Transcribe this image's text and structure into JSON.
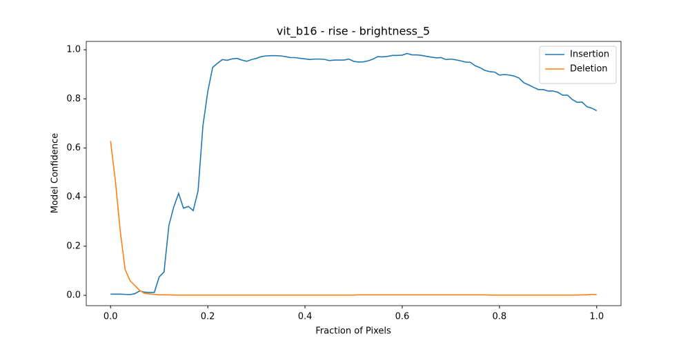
{
  "chart_data": {
    "type": "line",
    "title": "vit_b16 - rise - brightness_5",
    "x_label": "Fraction of Pixels",
    "y_label": "Model Confidence",
    "x": [
      0,
      0.01,
      0.02,
      0.03,
      0.04,
      0.05,
      0.06,
      0.07,
      0.08,
      0.09,
      0.1,
      0.11,
      0.12,
      0.13,
      0.14,
      0.15,
      0.16,
      0.17,
      0.18,
      0.19,
      0.2,
      0.21,
      0.22,
      0.23,
      0.24,
      0.25,
      0.26,
      0.27,
      0.28,
      0.29,
      0.3,
      0.31,
      0.32,
      0.33,
      0.34,
      0.35,
      0.36,
      0.37,
      0.38,
      0.39,
      0.4,
      0.41,
      0.42,
      0.43,
      0.44,
      0.45,
      0.46,
      0.47,
      0.48,
      0.49,
      0.5,
      0.51,
      0.52,
      0.53,
      0.54,
      0.55,
      0.56,
      0.57,
      0.58,
      0.59,
      0.6,
      0.61,
      0.62,
      0.63,
      0.64,
      0.65,
      0.66,
      0.67,
      0.68,
      0.69,
      0.7,
      0.71,
      0.72,
      0.73,
      0.74,
      0.75,
      0.76,
      0.77,
      0.78,
      0.79,
      0.8,
      0.81,
      0.82,
      0.83,
      0.84,
      0.85,
      0.86,
      0.87,
      0.88,
      0.89,
      0.9,
      0.91,
      0.92,
      0.93,
      0.94,
      0.95,
      0.96,
      0.97,
      0.98,
      0.99,
      1
    ],
    "series": [
      {
        "name": "Insertion",
        "color": "#1f77b4",
        "values": [
          0.005,
          0.005,
          0.005,
          0.004,
          0.003,
          0.007,
          0.018,
          0.013,
          0.012,
          0.012,
          0.075,
          0.095,
          0.285,
          0.36,
          0.415,
          0.355,
          0.362,
          0.345,
          0.425,
          0.69,
          0.83,
          0.928,
          0.945,
          0.96,
          0.957,
          0.963,
          0.965,
          0.958,
          0.953,
          0.96,
          0.965,
          0.972,
          0.975,
          0.976,
          0.976,
          0.975,
          0.972,
          0.968,
          0.968,
          0.965,
          0.963,
          0.96,
          0.962,
          0.962,
          0.961,
          0.956,
          0.958,
          0.958,
          0.958,
          0.962,
          0.953,
          0.95,
          0.951,
          0.955,
          0.962,
          0.972,
          0.971,
          0.973,
          0.977,
          0.977,
          0.978,
          0.985,
          0.979,
          0.979,
          0.977,
          0.973,
          0.97,
          0.967,
          0.968,
          0.96,
          0.962,
          0.959,
          0.955,
          0.95,
          0.949,
          0.935,
          0.927,
          0.916,
          0.911,
          0.909,
          0.897,
          0.899,
          0.897,
          0.893,
          0.885,
          0.866,
          0.857,
          0.847,
          0.838,
          0.838,
          0.832,
          0.832,
          0.827,
          0.815,
          0.815,
          0.797,
          0.786,
          0.787,
          0.768,
          0.762,
          0.752
        ]
      },
      {
        "name": "Deletion",
        "color": "#ff7f0e",
        "values": [
          0.628,
          0.465,
          0.26,
          0.105,
          0.06,
          0.04,
          0.02,
          0.008,
          0.006,
          0.004,
          0.002,
          0.002,
          0.002,
          0.001,
          0.001,
          0.001,
          0.001,
          0.001,
          0.001,
          0.001,
          0.001,
          0.001,
          0.001,
          0.001,
          0.001,
          0.001,
          0.001,
          0.001,
          0.001,
          0.001,
          0.001,
          0.001,
          0.001,
          0.001,
          0.001,
          0.001,
          0.001,
          0.001,
          0.001,
          0.001,
          0.001,
          0.001,
          0.001,
          0.001,
          0.001,
          0.001,
          0.001,
          0.001,
          0.001,
          0.001,
          0.001,
          0.002,
          0.002,
          0.002,
          0.002,
          0.002,
          0.002,
          0.002,
          0.002,
          0.002,
          0.002,
          0.002,
          0.002,
          0.002,
          0.002,
          0.002,
          0.002,
          0.002,
          0.002,
          0.002,
          0.002,
          0.002,
          0.002,
          0.002,
          0.002,
          0.002,
          0.002,
          0.002,
          0.001,
          0.001,
          0.001,
          0.001,
          0.001,
          0.001,
          0.001,
          0.001,
          0.001,
          0.001,
          0.001,
          0.001,
          0.001,
          0.001,
          0.001,
          0.001,
          0.001,
          0.001,
          0.001,
          0.002,
          0.002,
          0.004,
          0.003
        ]
      }
    ],
    "xlim": [
      -0.05,
      1.05
    ],
    "ylim": [
      -0.042,
      1.034
    ],
    "xticks": [
      {
        "value": 0,
        "label": "0.0"
      },
      0.2,
      0.4,
      0.6,
      0.8,
      {
        "value": 1,
        "label": "1.0"
      }
    ],
    "yticks": [
      {
        "value": 0,
        "label": "0.0"
      },
      0.2,
      0.4,
      0.6,
      0.8,
      {
        "value": 1,
        "label": "1.0"
      }
    ],
    "legend": "upper right"
  }
}
